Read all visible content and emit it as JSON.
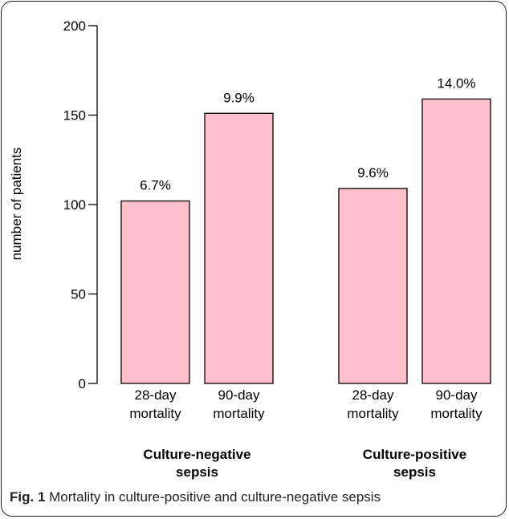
{
  "chart_data": {
    "type": "bar",
    "ylabel": "number of patients",
    "ylim": [
      0,
      200
    ],
    "yticks": [
      0,
      50,
      100,
      150,
      200
    ],
    "bar_color": "#ffc0cb",
    "bar_edge_color": "#000000",
    "groups": [
      {
        "label_lines": [
          "Culture-negative",
          "sepsis"
        ],
        "bars": [
          {
            "label_lines": [
              "28-day",
              "mortality"
            ],
            "value": 102,
            "annotation": "6.7%"
          },
          {
            "label_lines": [
              "90-day",
              "mortality"
            ],
            "value": 151,
            "annotation": "9.9%"
          }
        ]
      },
      {
        "label_lines": [
          "Culture-positive",
          "sepsis"
        ],
        "bars": [
          {
            "label_lines": [
              "28-day",
              "mortality"
            ],
            "value": 109,
            "annotation": "9.6%"
          },
          {
            "label_lines": [
              "90-day",
              "mortality"
            ],
            "value": 159,
            "annotation": "14.0%"
          }
        ]
      }
    ]
  },
  "caption": {
    "label": "Fig. 1",
    "text": "Mortality in culture-positive and culture-negative sepsis"
  }
}
